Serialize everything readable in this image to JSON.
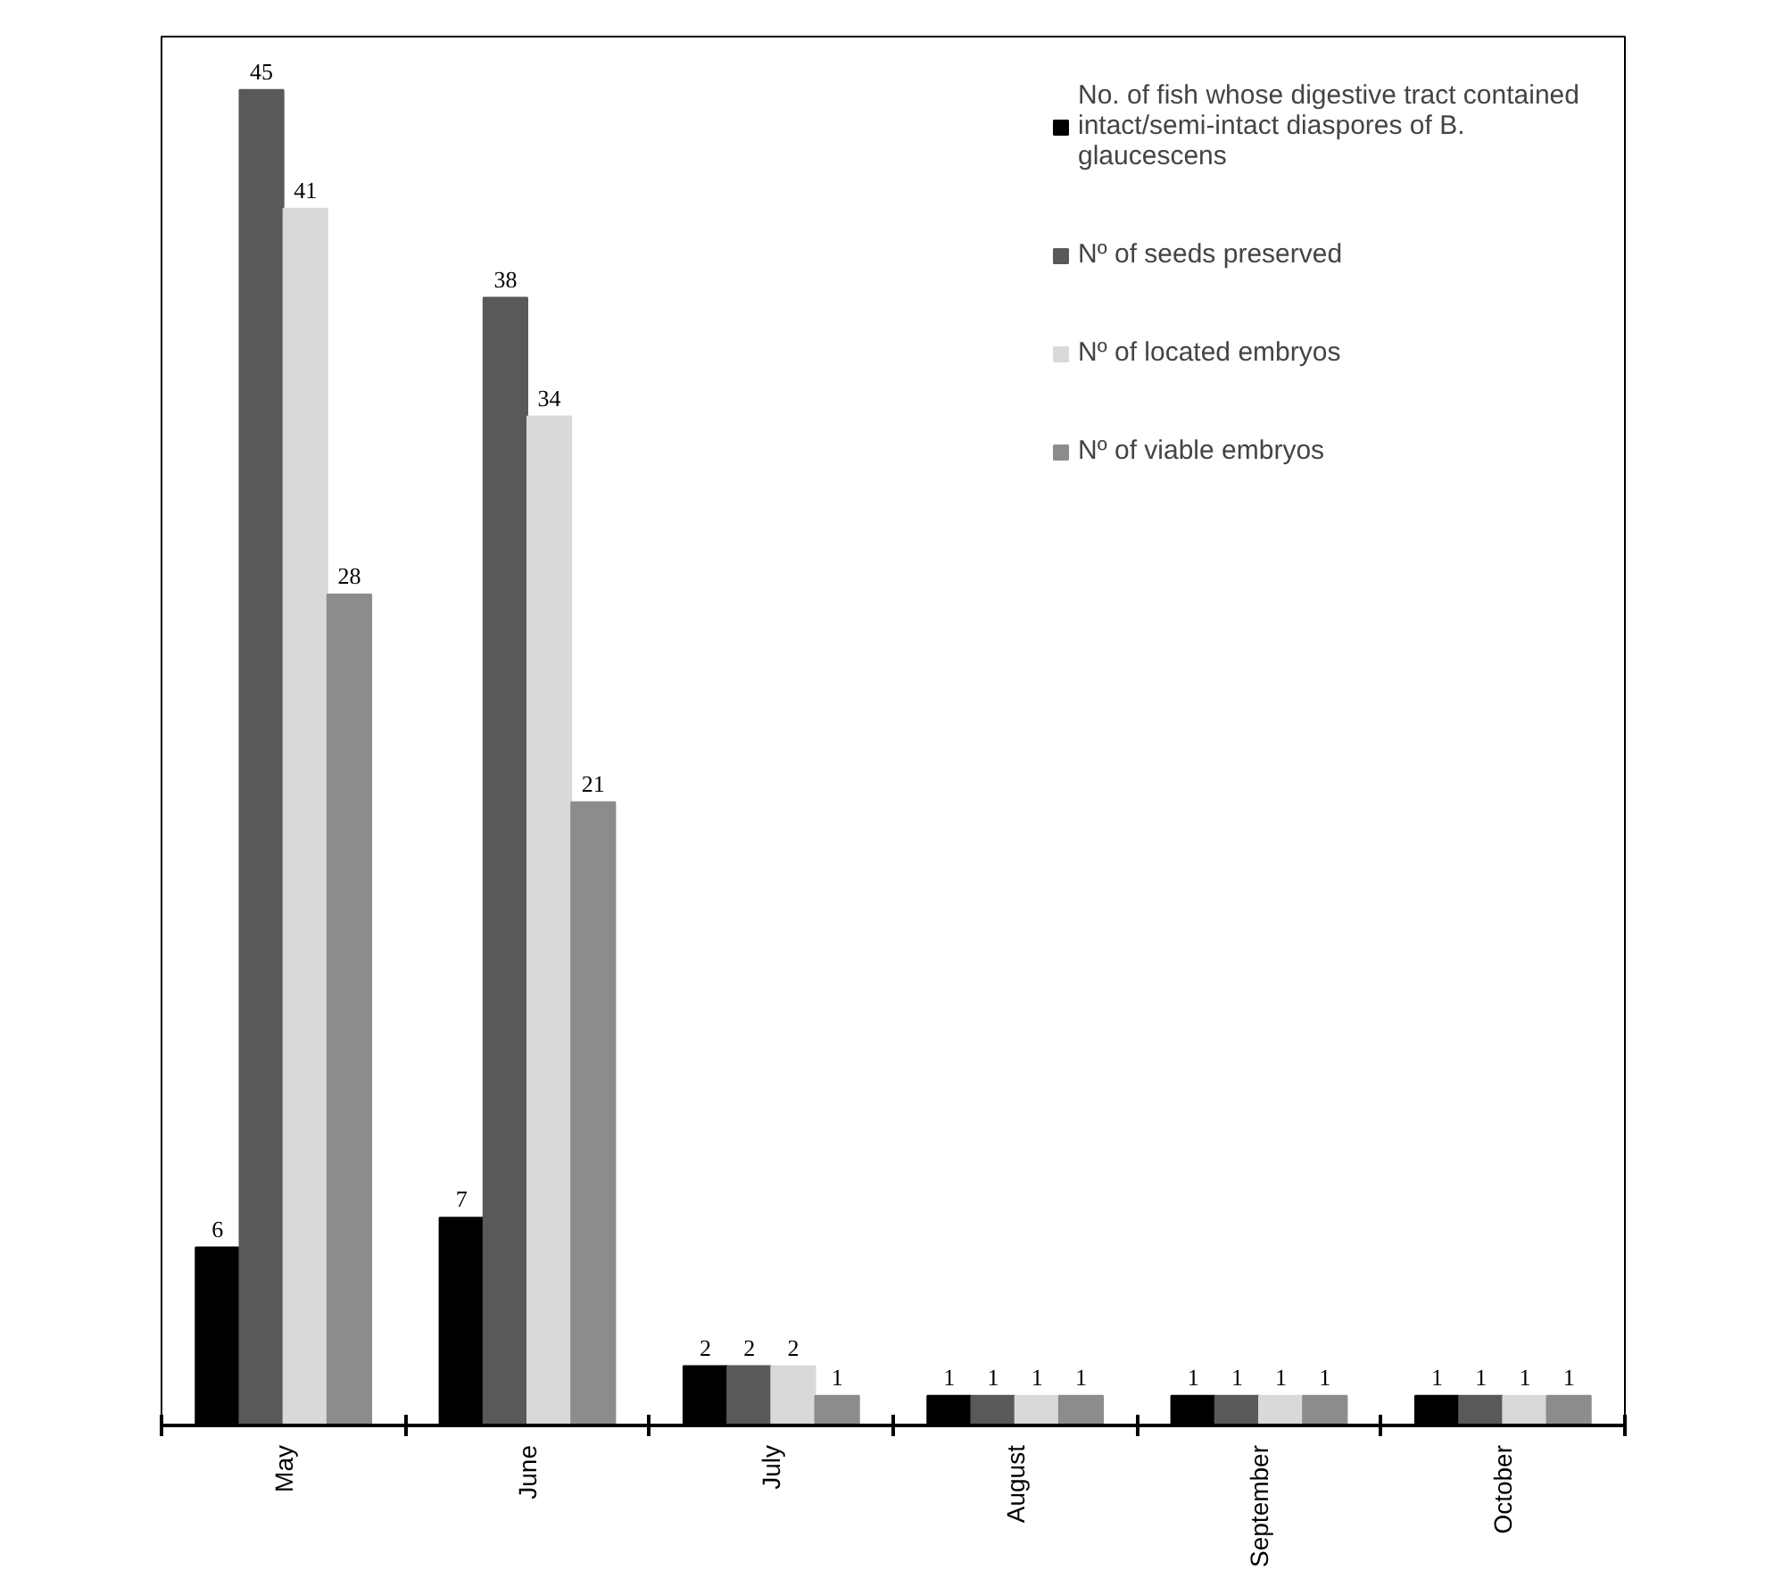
{
  "chart_data": {
    "type": "bar",
    "categories": [
      "May",
      "June",
      "July",
      "August",
      "September",
      "October"
    ],
    "series": [
      {
        "name": "No. of fish whose digestive tract contained intact/semi-intact diaspores of B. glaucescens",
        "color": "#000000",
        "values": [
          6,
          7,
          2,
          1,
          1,
          1
        ]
      },
      {
        "name": "Nº of seeds preserved",
        "color": "#595959",
        "values": [
          45,
          38,
          2,
          1,
          1,
          1
        ]
      },
      {
        "name": "Nº of located embryos",
        "color": "#d9d9d9",
        "values": [
          41,
          34,
          2,
          1,
          1,
          1
        ]
      },
      {
        "name": "Nº of viable embryos",
        "color": "#8c8c8c",
        "values": [
          28,
          21,
          1,
          1,
          1,
          1
        ]
      }
    ],
    "data_labels": true,
    "grid": false,
    "legend": "top right"
  }
}
